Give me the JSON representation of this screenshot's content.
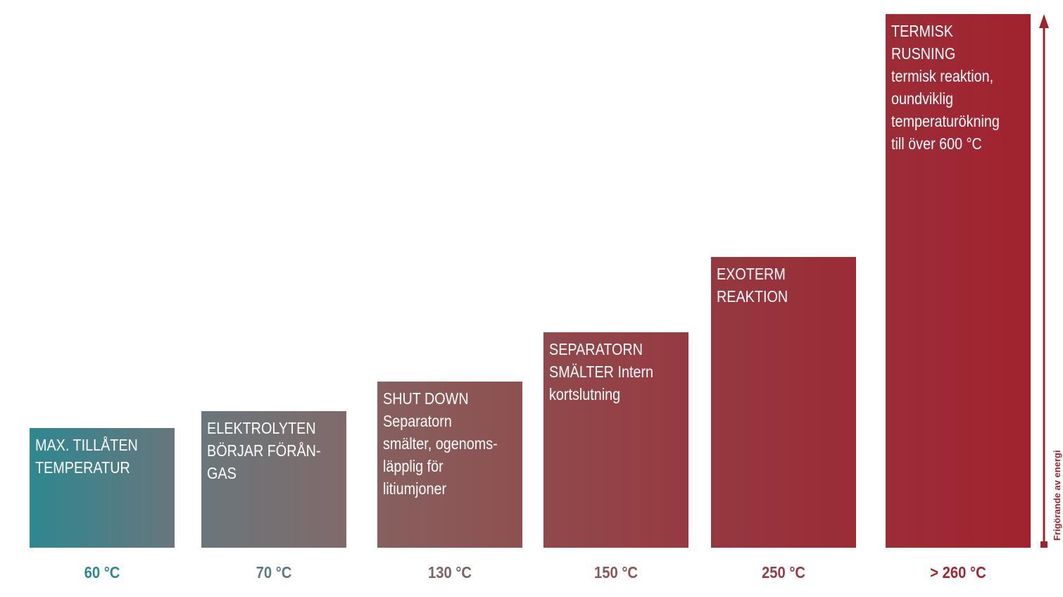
{
  "steps": [
    {
      "lines": [
        "MAX. TILLÅTEN",
        "TEMPERATUR"
      ],
      "temperature": "60 °C"
    },
    {
      "lines": [
        "ELEKTROLYTEN",
        "BÖRJAR FÖRÅN-",
        "GAS"
      ],
      "temperature": "70 °C"
    },
    {
      "lines": [
        "SHUT DOWN",
        "Separatorn",
        "smälter, ogenoms-",
        "läpplig för",
        "litiumjoner"
      ],
      "temperature": "130 °C"
    },
    {
      "lines": [
        "SEPARATORN",
        "SMÄLTER Intern",
        "kortslutning"
      ],
      "temperature": "150 °C"
    },
    {
      "lines": [
        "EXOTERM",
        "REAKTION"
      ],
      "temperature": "250 °C"
    },
    {
      "lines": [
        "TERMISK",
        "RUSNING",
        "termisk reaktion,",
        "oundviklig",
        "temperaturökning",
        "till över 600 °C"
      ],
      "temperature": "> 260 °C"
    }
  ],
  "axis_label": "Frigörande av energi"
}
